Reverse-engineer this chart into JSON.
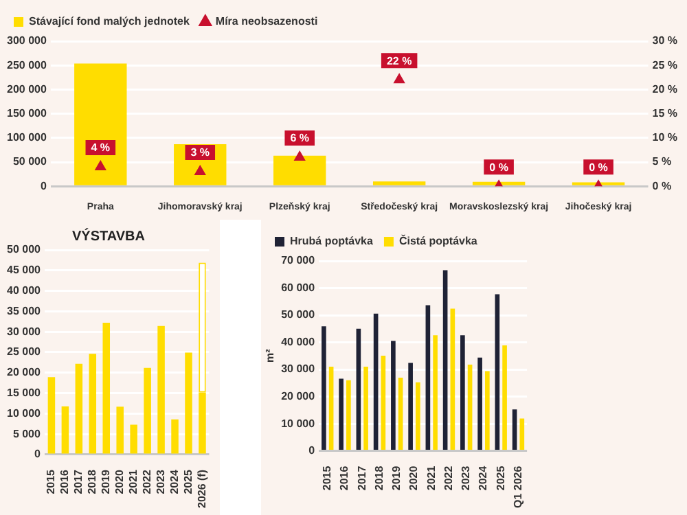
{
  "chart_data": [
    {
      "type": "bar",
      "categories": [
        "Praha",
        "Jihomoravský kraj",
        "Plzeňský kraj",
        "Středočeský kraj",
        "Moravskoslezský kraj",
        "Jihočeský kraj"
      ],
      "series": [
        {
          "name": "Stávající fond malých jednotek",
          "color": "#ffdd00",
          "values": [
            254000,
            87000,
            63000,
            10000,
            9000,
            8000
          ]
        },
        {
          "name": "Míra neobsazenosti",
          "type": "scatter",
          "axis": "y2",
          "color": "#c8102e",
          "marker": "triangle",
          "values": [
            4,
            3,
            6,
            22,
            0,
            0
          ],
          "value_labels": [
            "4 %",
            "3 %",
            "6 %",
            "22 %",
            "0 %",
            "0 %"
          ]
        }
      ],
      "ylim": [
        0,
        300000
      ],
      "yticks": [
        {
          "value": 0,
          "label": "0"
        },
        {
          "value": 50000,
          "label": "50 000"
        },
        {
          "value": 100000,
          "label": "100 000"
        },
        {
          "value": 150000,
          "label": "150 000"
        },
        {
          "value": 200000,
          "label": "200 000"
        },
        {
          "value": 250000,
          "label": "250 000"
        },
        {
          "value": 300000,
          "label": "300 000"
        }
      ],
      "y2lim": [
        0,
        30
      ],
      "y2ticks": [
        {
          "value": 0,
          "label": "0 %"
        },
        {
          "value": 5,
          "label": "5 %"
        },
        {
          "value": 10,
          "label": "10 %"
        },
        {
          "value": 15,
          "label": "15 %"
        },
        {
          "value": 20,
          "label": "20 %"
        },
        {
          "value": 25,
          "label": "25 %"
        },
        {
          "value": 30,
          "label": "30 %"
        }
      ],
      "grid": "y",
      "legend": "top left"
    },
    {
      "type": "bar",
      "title": "VÝSTAVBA",
      "stacked": true,
      "categories": [
        "2015",
        "2016",
        "2017",
        "2018",
        "2019",
        "2020",
        "2021",
        "2022",
        "2023",
        "2024",
        "2025",
        "2026 (f)"
      ],
      "series": [
        {
          "color": "#ffdd00",
          "values": [
            18900,
            11800,
            22200,
            24600,
            32200,
            11700,
            7300,
            21200,
            31400,
            8600,
            24900,
            15200
          ]
        },
        {
          "color": "#ffffff",
          "line_style": "dashed",
          "values": [
            null,
            null,
            null,
            null,
            null,
            null,
            null,
            null,
            null,
            null,
            null,
            31700
          ]
        }
      ],
      "ylim": [
        0,
        50000
      ],
      "yticks": [
        {
          "value": 0,
          "label": "0"
        },
        {
          "value": 5000,
          "label": "5 000"
        },
        {
          "value": 10000,
          "label": "10 000"
        },
        {
          "value": 15000,
          "label": "15 000"
        },
        {
          "value": 20000,
          "label": "20 000"
        },
        {
          "value": 25000,
          "label": "25 000"
        },
        {
          "value": 30000,
          "label": "30 000"
        },
        {
          "value": 35000,
          "label": "35 000"
        },
        {
          "value": 40000,
          "label": "40 000"
        },
        {
          "value": 45000,
          "label": "45 000"
        },
        {
          "value": 50000,
          "label": "50 000"
        }
      ],
      "grid": "y",
      "legend": false
    },
    {
      "type": "bar",
      "ylabel": "m²",
      "categories": [
        "2015",
        "2016",
        "2017",
        "2018",
        "2019",
        "2020",
        "2021",
        "2022",
        "2023",
        "2024",
        "2025",
        "Q1 2026"
      ],
      "series": [
        {
          "name": "Hrubá poptávka",
          "color": "#1f2235",
          "values": [
            45900,
            26600,
            45000,
            50600,
            40500,
            32400,
            53700,
            66600,
            42600,
            34400,
            57700,
            15300
          ]
        },
        {
          "name": "Čistá poptávka",
          "color": "#ffdd00",
          "values": [
            31000,
            26000,
            31000,
            35100,
            27000,
            25300,
            42600,
            52400,
            31800,
            29400,
            38900,
            11900
          ]
        }
      ],
      "ylim": [
        0,
        70000
      ],
      "yticks": [
        {
          "value": 0,
          "label": "0"
        },
        {
          "value": 10000,
          "label": "10 000"
        },
        {
          "value": 20000,
          "label": "20 000"
        },
        {
          "value": 30000,
          "label": "30 000"
        },
        {
          "value": 40000,
          "label": "40 000"
        },
        {
          "value": 50000,
          "label": "50 000"
        },
        {
          "value": 60000,
          "label": "60 000"
        },
        {
          "value": 70000,
          "label": "70 000"
        }
      ],
      "grid": "y",
      "legend": "top left"
    }
  ]
}
